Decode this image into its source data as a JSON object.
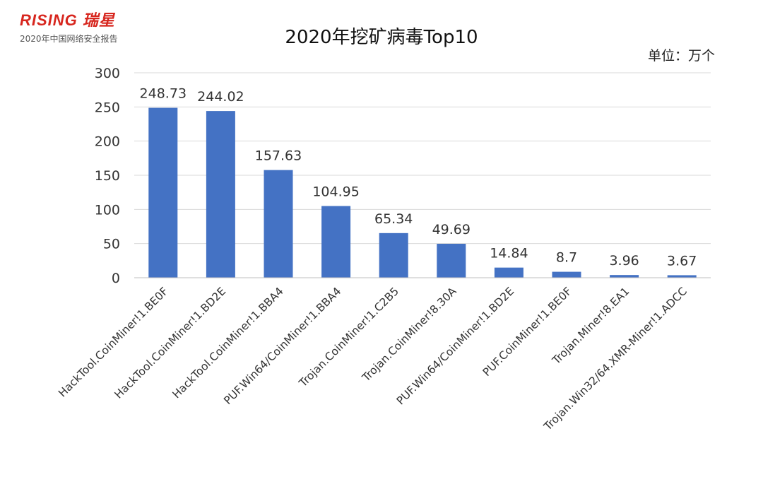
{
  "brand": {
    "name": "RISING 瑞星",
    "subtitle": "2020年中国网络安全报告"
  },
  "unit_label": "单位：万个",
  "colors": {
    "bar": "#4472c4",
    "brand_red": "#d7261e",
    "grid": "#d9d9d9"
  },
  "chart_data": {
    "type": "bar",
    "title": "2020年挖矿病毒Top10",
    "xlabel": "",
    "ylabel": "",
    "ylim": [
      0,
      300
    ],
    "yticks": [
      0,
      50,
      100,
      150,
      200,
      250,
      300
    ],
    "grid": true,
    "categories": [
      "HackTool.CoinMiner!1.BE0F",
      "HackTool.CoinMiner!1.BD2E",
      "HackTool.CoinMiner!1.BBA4",
      "PUF.Win64/CoinMiner!1.BBA4",
      "Trojan.CoinMiner!1.C2B5",
      "Trojan.CoinMiner!8.30A",
      "PUF.Win64/CoinMiner!1.BD2E",
      "PUF.CoinMiner!1.BE0F",
      "Trojan.Miner!8.EA1",
      "Trojan.Win32/64.XMR-Miner!1.ADCC"
    ],
    "values": [
      248.73,
      244.02,
      157.63,
      104.95,
      65.34,
      49.69,
      14.84,
      8.7,
      3.96,
      3.67
    ],
    "value_labels": [
      "248.73",
      "244.02",
      "157.63",
      "104.95",
      "65.34",
      "49.69",
      "14.84",
      "8.7",
      "3.96",
      "3.67"
    ]
  }
}
